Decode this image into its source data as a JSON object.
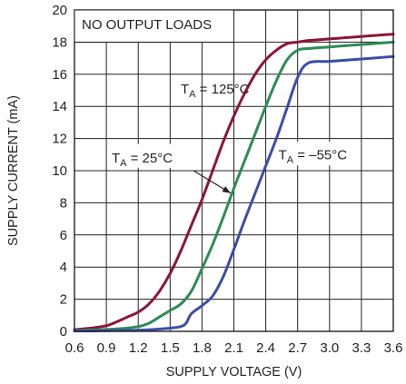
{
  "chart_data": {
    "type": "line",
    "xlabel": "SUPPLY VOLTAGE (V)",
    "ylabel": "SUPPLY CURRENT (mA)",
    "xlim": [
      0.6,
      3.6
    ],
    "ylim": [
      0,
      20
    ],
    "x_ticks": [
      0.6,
      0.9,
      1.2,
      1.5,
      1.8,
      2.1,
      2.4,
      2.7,
      3.0,
      3.3,
      3.6
    ],
    "x_tick_labels": [
      "0.6",
      "0.9",
      "1.2",
      "1.5",
      "1.8",
      "2.1",
      "2.4",
      "2.7",
      "3.0",
      "3.3",
      "3.6"
    ],
    "y_ticks": [
      0,
      2,
      4,
      6,
      8,
      10,
      12,
      14,
      16,
      18,
      20
    ],
    "y_tick_labels": [
      "0",
      "2",
      "4",
      "6",
      "8",
      "10",
      "12",
      "14",
      "16",
      "18",
      "20"
    ],
    "grid": true,
    "annotation_box": "NO OUTPUT LOADS",
    "series": [
      {
        "name": "TA = 125°C",
        "color": "#8b1538",
        "label_parts": {
          "main": "T",
          "sub": "A",
          "rest": " = 125°C"
        },
        "x": [
          0.6,
          0.75,
          0.9,
          1.0,
          1.1,
          1.2,
          1.3,
          1.4,
          1.5,
          1.6,
          1.7,
          1.8,
          1.9,
          2.0,
          2.1,
          2.2,
          2.3,
          2.4,
          2.5,
          2.6,
          2.7,
          2.8,
          3.0,
          3.2,
          3.4,
          3.6
        ],
        "y": [
          0.1,
          0.2,
          0.35,
          0.6,
          0.9,
          1.2,
          1.7,
          2.5,
          3.6,
          5.0,
          6.6,
          8.2,
          10.0,
          11.8,
          13.4,
          14.8,
          16.0,
          16.9,
          17.5,
          17.9,
          18.0,
          18.1,
          18.2,
          18.3,
          18.4,
          18.5
        ]
      },
      {
        "name": "TA = 25°C",
        "color": "#2e8b57",
        "label_parts": {
          "main": "T",
          "sub": "A",
          "rest": " = 25°C"
        },
        "x": [
          0.6,
          1.0,
          1.2,
          1.3,
          1.4,
          1.5,
          1.6,
          1.7,
          1.8,
          1.9,
          2.0,
          2.1,
          2.2,
          2.3,
          2.4,
          2.5,
          2.6,
          2.7,
          2.8,
          3.0,
          3.2,
          3.4,
          3.6
        ],
        "y": [
          0.05,
          0.15,
          0.3,
          0.5,
          0.9,
          1.3,
          1.7,
          2.5,
          3.9,
          5.4,
          7.1,
          8.9,
          10.6,
          12.3,
          14.0,
          15.6,
          16.9,
          17.5,
          17.6,
          17.7,
          17.8,
          17.9,
          18.0
        ]
      },
      {
        "name": "TA = –55°C",
        "color": "#3b4ea5",
        "label_parts": {
          "main": "T",
          "sub": "A",
          "rest": " = –55°C"
        },
        "x": [
          0.6,
          1.0,
          1.3,
          1.5,
          1.6,
          1.65,
          1.7,
          1.8,
          1.9,
          2.0,
          2.1,
          2.2,
          2.3,
          2.4,
          2.5,
          2.6,
          2.7,
          2.8,
          3.0,
          3.2,
          3.4,
          3.6
        ],
        "y": [
          0.02,
          0.05,
          0.1,
          0.2,
          0.3,
          0.5,
          1.1,
          1.6,
          2.2,
          3.4,
          5.1,
          6.9,
          8.6,
          10.3,
          12.0,
          13.9,
          15.8,
          16.7,
          16.8,
          16.9,
          17.0,
          17.1
        ]
      }
    ]
  }
}
